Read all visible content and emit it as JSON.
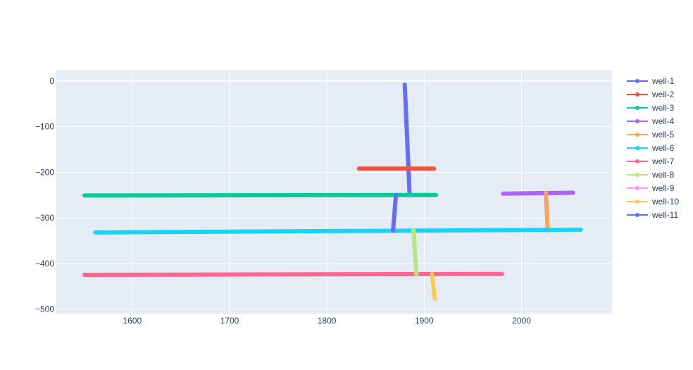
{
  "chart_data": {
    "type": "line",
    "title": "",
    "xlabel": "",
    "ylabel": "",
    "xlim": [
      1522,
      2093
    ],
    "ylim": [
      -510,
      23
    ],
    "x_ticks": [
      1600,
      1700,
      1800,
      1900,
      2000
    ],
    "y_ticks": [
      0,
      -100,
      -200,
      -300,
      -400,
      -500
    ],
    "x_tick_labels": [
      "1600",
      "1700",
      "1800",
      "1900",
      "2000"
    ],
    "y_tick_labels": [
      "0",
      "−100",
      "−200",
      "−300",
      "−400",
      "−500"
    ],
    "grid": true,
    "legend_position": "right",
    "background_color": "#e5ecf6",
    "series": [
      {
        "name": "well-1",
        "color": "#636efa",
        "points": [
          [
            1880,
            -8
          ],
          [
            1885,
            -248
          ]
        ]
      },
      {
        "name": "well-2",
        "color": "#ef553b",
        "points": [
          [
            1833,
            -192
          ],
          [
            1910,
            -192
          ]
        ]
      },
      {
        "name": "well-3",
        "color": "#00cc96",
        "points": [
          [
            1551,
            -251
          ],
          [
            1912,
            -250
          ]
        ]
      },
      {
        "name": "well-4",
        "color": "#ab63fa",
        "points": [
          [
            1981,
            -247
          ],
          [
            2053,
            -245
          ]
        ]
      },
      {
        "name": "well-5",
        "color": "#ffa15a",
        "points": [
          [
            2025,
            -245
          ],
          [
            2027,
            -328
          ]
        ]
      },
      {
        "name": "well-6",
        "color": "#19d3f3",
        "points": [
          [
            1562,
            -332
          ],
          [
            2061,
            -326
          ]
        ]
      },
      {
        "name": "well-7",
        "color": "#ff6692",
        "points": [
          [
            1551,
            -425
          ],
          [
            1980,
            -423
          ]
        ]
      },
      {
        "name": "well-8",
        "color": "#b6e880",
        "points": [
          [
            1889,
            -327
          ],
          [
            1892,
            -425
          ]
        ]
      },
      {
        "name": "well-9",
        "color": "#ff97ff",
        "points": []
      },
      {
        "name": "well-10",
        "color": "#fecb52",
        "points": [
          [
            1908,
            -423
          ],
          [
            1911,
            -478
          ]
        ]
      },
      {
        "name": "well-11",
        "color": "#636efa",
        "points": [
          [
            1871,
            -250
          ],
          [
            1868,
            -328
          ]
        ]
      }
    ]
  }
}
